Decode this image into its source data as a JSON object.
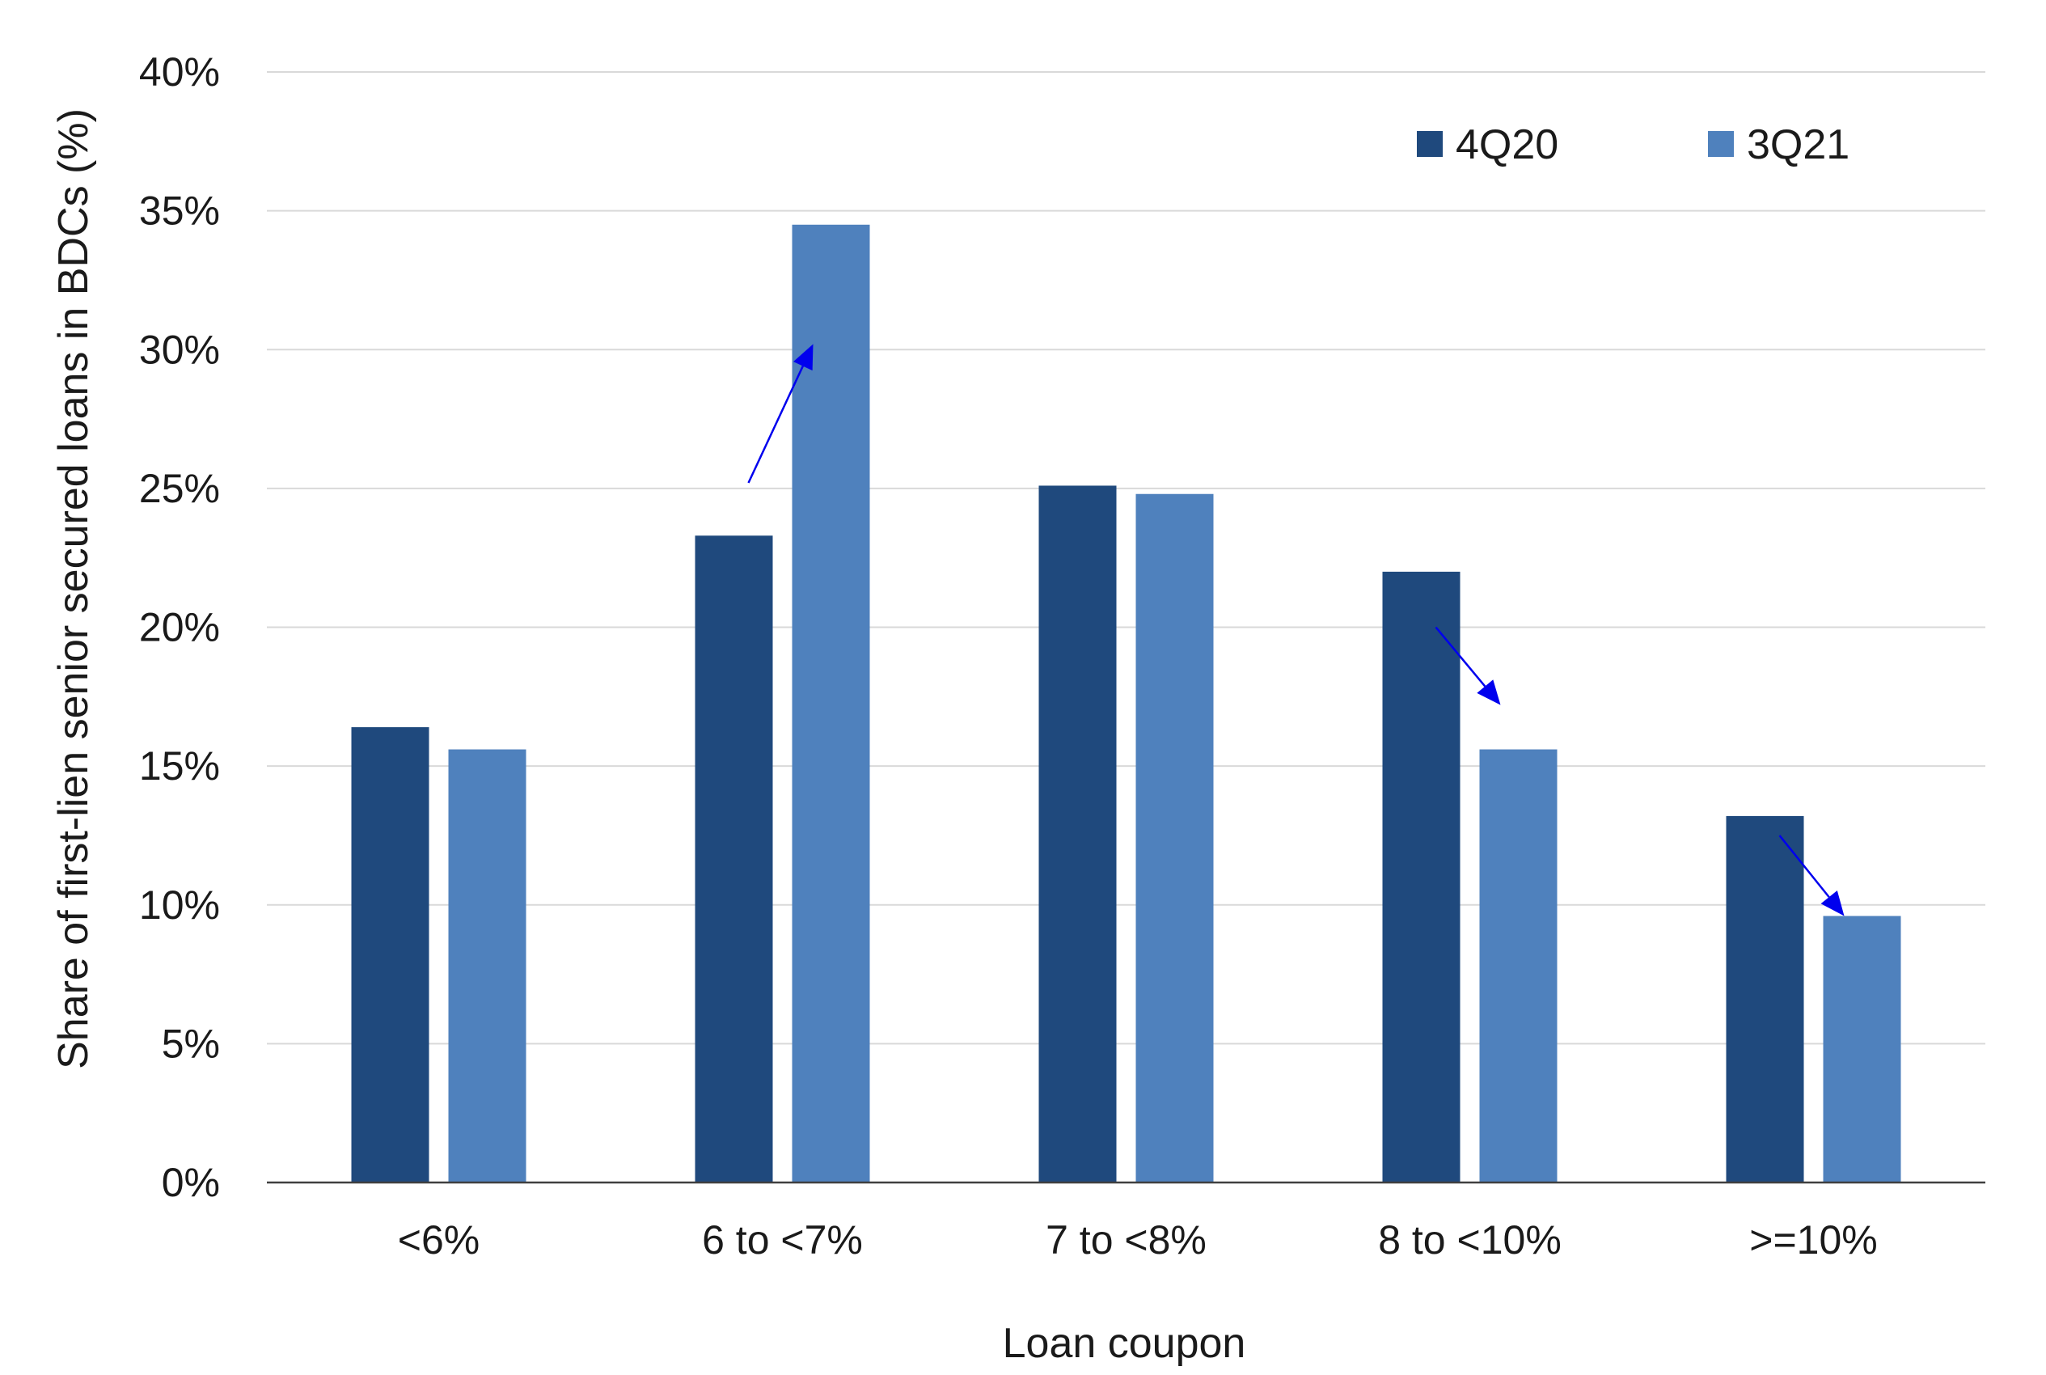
{
  "chart_data": {
    "type": "bar",
    "title": "",
    "xlabel": "Loan coupon",
    "ylabel": "Share of first-lien senior secured loans in BDCs (%)",
    "categories": [
      "<6%",
      "6 to <7%",
      "7 to <8%",
      "8 to <10%",
      ">=10%"
    ],
    "series": [
      {
        "name": "4Q20",
        "values": [
          16.4,
          23.3,
          25.1,
          22.0,
          13.2
        ]
      },
      {
        "name": "3Q21",
        "values": [
          15.6,
          34.5,
          24.8,
          15.6,
          9.6
        ]
      }
    ],
    "ylim": [
      0,
      40
    ],
    "yticks": [
      0,
      5,
      10,
      15,
      20,
      25,
      30,
      35,
      40
    ],
    "ytick_labels": [
      "0%",
      "5%",
      "10%",
      "15%",
      "20%",
      "25%",
      "30%",
      "35%",
      "40%"
    ],
    "grid": true,
    "legend_position": "top-right",
    "annotations": [
      {
        "type": "arrow",
        "category": "6 to <7%",
        "from_value": 25.2,
        "to_value": 30.2,
        "direction": "up"
      },
      {
        "type": "arrow",
        "category": "8 to <10%",
        "from_value": 20.0,
        "to_value": 17.2,
        "direction": "down"
      },
      {
        "type": "arrow",
        "category": ">=10%",
        "from_value": 12.5,
        "to_value": 9.6,
        "direction": "down"
      }
    ]
  },
  "colors": {
    "series_4Q20": "#1f497d",
    "series_3Q21": "#4f81bd",
    "grid": "#d9d9d9",
    "axis": "#404040",
    "arrow": "#0000ee"
  }
}
